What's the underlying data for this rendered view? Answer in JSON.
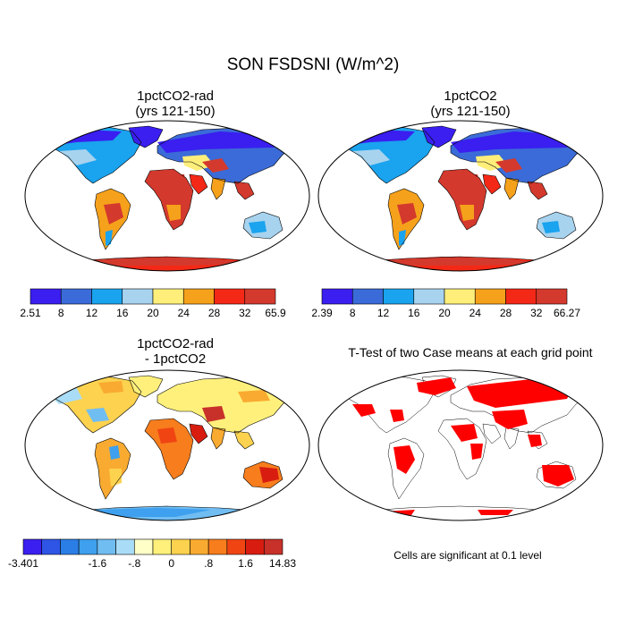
{
  "figure": {
    "title": "SON FSDSNI (W/m^2)"
  },
  "panels": [
    {
      "title_line1": "1pctCO2-rad",
      "title_line2": "(yrs 121-150)",
      "colorbar": {
        "colors": [
          "#3a1ff0",
          "#3b6bd8",
          "#1aa3ee",
          "#a7d3ef",
          "#ffef7a",
          "#f6a11b",
          "#f42816",
          "#d4392d"
        ],
        "labels": [
          "2.51",
          "8",
          "12",
          "16",
          "20",
          "24",
          "28",
          "32",
          "65.9"
        ]
      }
    },
    {
      "title_line1": "1pctCO2",
      "title_line2": "(yrs 121-150)",
      "colorbar": {
        "colors": [
          "#3a1ff0",
          "#3b6bd8",
          "#1aa3ee",
          "#a7d3ef",
          "#ffef7a",
          "#f6a11b",
          "#f42816",
          "#d4392d"
        ],
        "labels": [
          "2.39",
          "8",
          "12",
          "16",
          "20",
          "24",
          "28",
          "32",
          "66.27"
        ]
      }
    },
    {
      "title_line1": "1pctCO2-rad",
      "title_line2": "- 1pctCO2",
      "colorbar": {
        "colors": [
          "#3a1ff0",
          "#2f55e6",
          "#2b7ee6",
          "#3ea0ee",
          "#70bdf2",
          "#a9dcf7",
          "#ffffc8",
          "#fff07c",
          "#fcd24e",
          "#f9aa30",
          "#f77d1d",
          "#f04513",
          "#d81d10",
          "#c8302a"
        ],
        "labels": [
          "-3.401",
          "-1.6",
          "-.8",
          "0",
          ".8",
          "1.6",
          "14.83"
        ]
      }
    },
    {
      "title_line1": "T-Test of two Case means at each grid point",
      "note": "Cells are significant at 0.1 level"
    }
  ]
}
